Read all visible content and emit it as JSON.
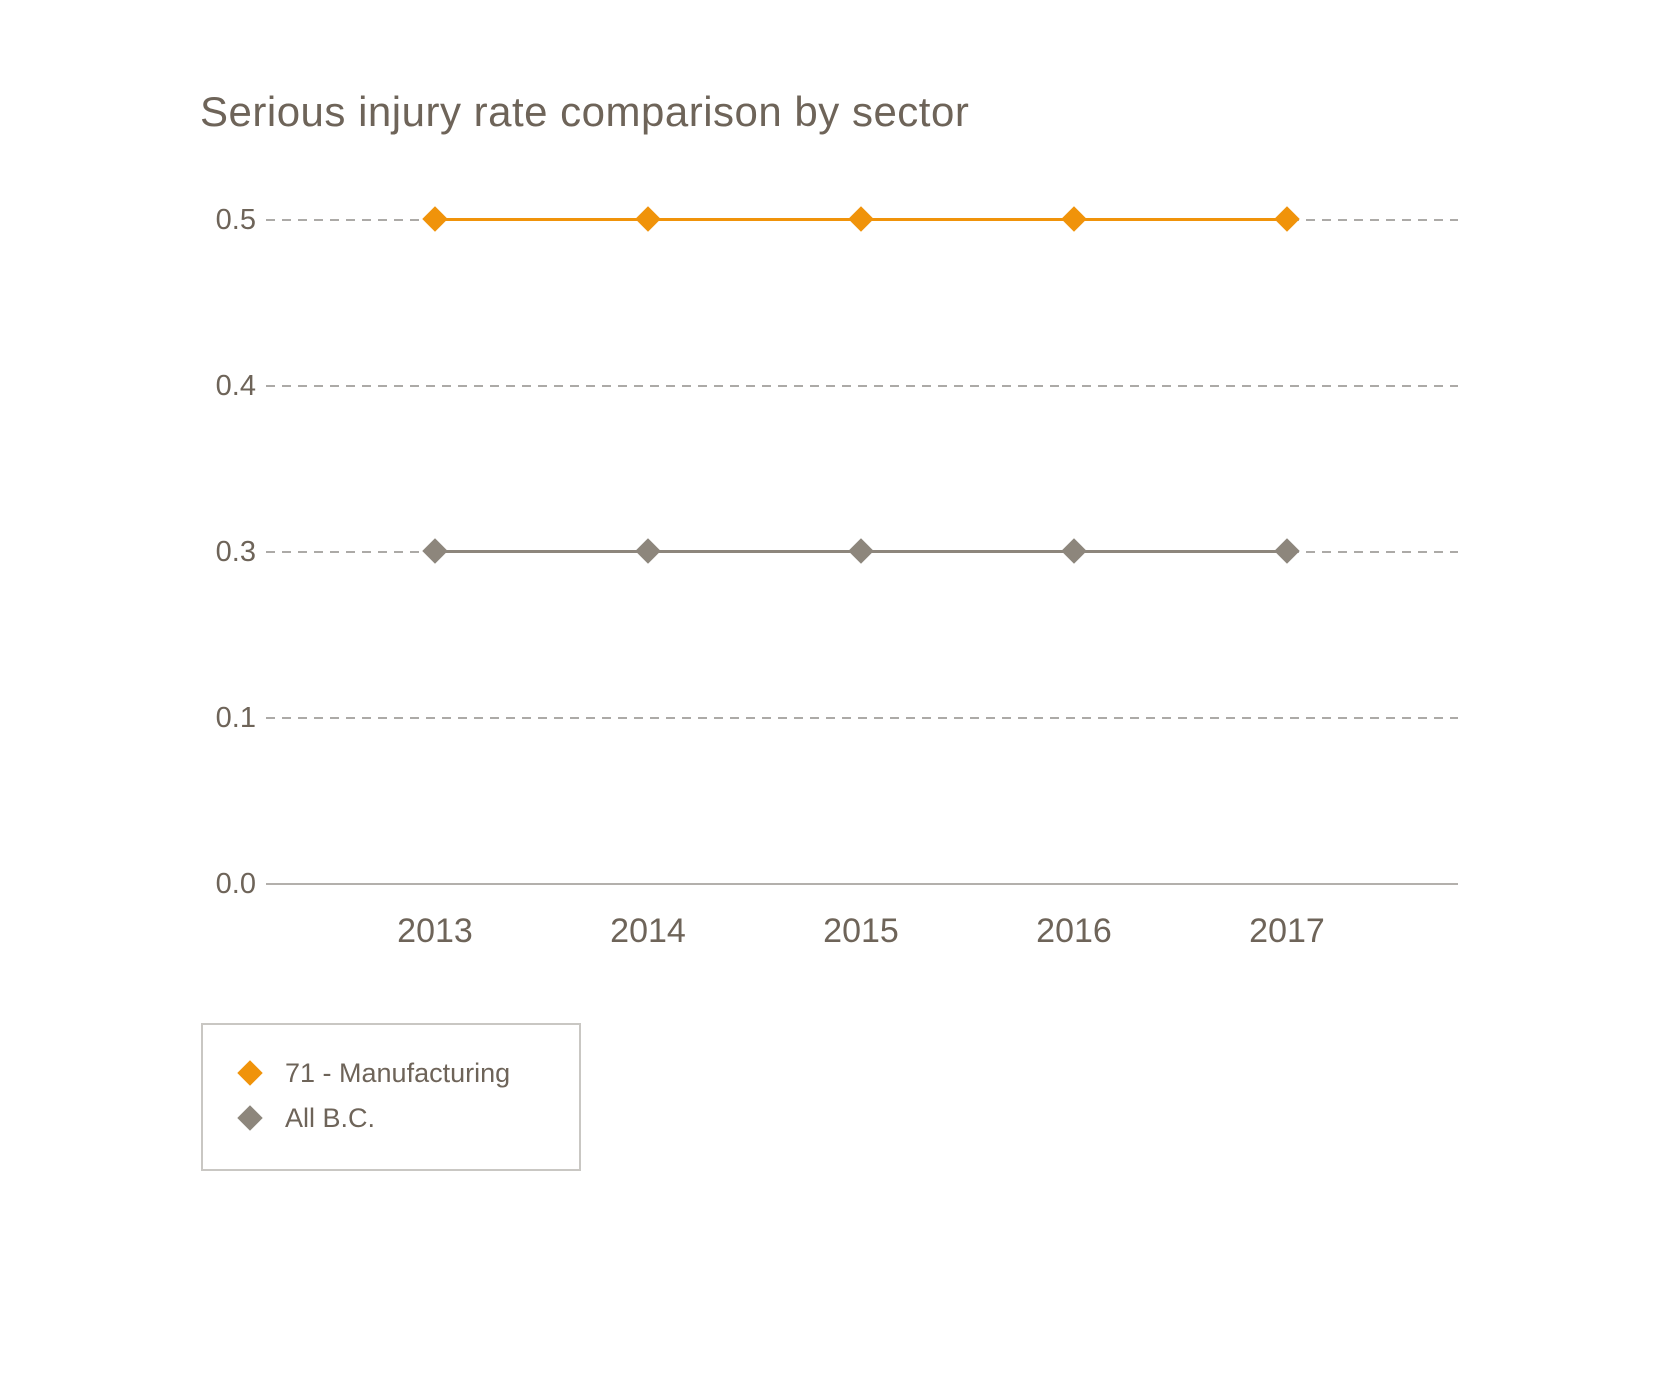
{
  "chart_data": {
    "type": "line",
    "title": "Serious injury rate comparison by sector",
    "x": [
      2013,
      2014,
      2015,
      2016,
      2017
    ],
    "x_labels": [
      "2013",
      "2014",
      "2015",
      "2016",
      "2017"
    ],
    "series": [
      {
        "name": "71 - Manufacturing",
        "values": [
          0.5,
          0.5,
          0.5,
          0.5,
          0.5
        ],
        "color": "#f0930a",
        "marker": "diamond"
      },
      {
        "name": "All B.C.",
        "values": [
          0.3,
          0.3,
          0.3,
          0.3,
          0.3
        ],
        "color": "#8d867c",
        "marker": "diamond"
      }
    ],
    "ytick_labels": [
      "0.5",
      "0.4",
      "0.3",
      "0.1",
      "0.0"
    ],
    "ylim": [
      0.0,
      0.5
    ],
    "xlabel": "",
    "ylabel": "",
    "grid": "horizontal-dashed",
    "legend_position": "bottom-left"
  },
  "colors": {
    "title_text": "#6e6459",
    "axis_text": "#6e6459",
    "gridline": "#acaaa7",
    "axis_line": "#b3b0ac",
    "legend_border": "#c9c7c3",
    "series_manufacturing": "#f0930a",
    "series_all_bc": "#8d867c",
    "background": "#ffffff"
  }
}
